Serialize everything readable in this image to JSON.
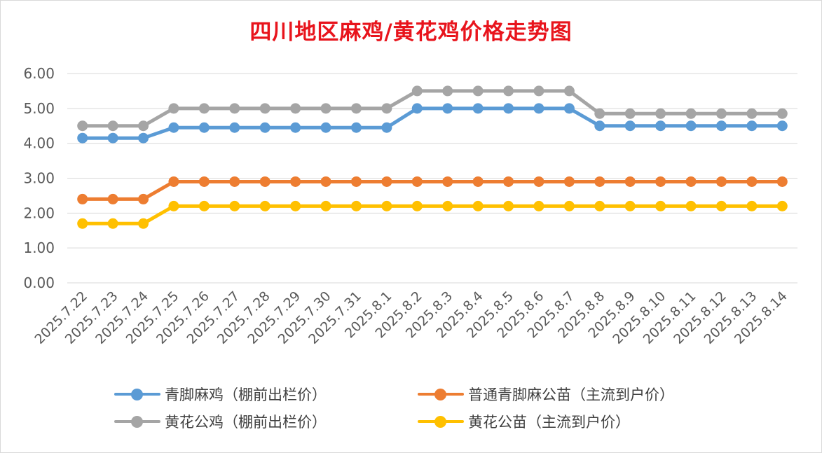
{
  "chart_data": {
    "type": "line",
    "title": "四川地区麻鸡/黄花鸡价格走势图",
    "xlabel": "",
    "ylabel": "",
    "ylim": [
      0,
      6
    ],
    "yticks": [
      "0.00",
      "1.00",
      "2.00",
      "3.00",
      "4.00",
      "5.00",
      "6.00"
    ],
    "grid": "horizontal",
    "legend_position": "bottom",
    "categories": [
      "2025.7.22",
      "2025.7.23",
      "2025.7.24",
      "2025.7.25",
      "2025.7.26",
      "2025.7.27",
      "2025.7.28",
      "2025.7.29",
      "2025.7.30",
      "2025.7.31",
      "2025.8.1",
      "2025.8.2",
      "2025.8.3",
      "2025.8.4",
      "2025.8.5",
      "2025.8.6",
      "2025.8.7",
      "2025.8.8",
      "2025.8.9",
      "2025.8.10",
      "2025.8.11",
      "2025.8.12",
      "2025.8.13",
      "2025.8.14"
    ],
    "series": [
      {
        "name": "青脚麻鸡（棚前出栏价）",
        "color": "#5b9bd5",
        "values": [
          4.15,
          4.15,
          4.15,
          4.45,
          4.45,
          4.45,
          4.45,
          4.45,
          4.45,
          4.45,
          4.45,
          5.0,
          5.0,
          5.0,
          5.0,
          5.0,
          5.0,
          4.5,
          4.5,
          4.5,
          4.5,
          4.5,
          4.5,
          4.5
        ]
      },
      {
        "name": "普通青脚麻公苗（主流到户价）",
        "color": "#ed7d31",
        "values": [
          2.4,
          2.4,
          2.4,
          2.9,
          2.9,
          2.9,
          2.9,
          2.9,
          2.9,
          2.9,
          2.9,
          2.9,
          2.9,
          2.9,
          2.9,
          2.9,
          2.9,
          2.9,
          2.9,
          2.9,
          2.9,
          2.9,
          2.9,
          2.9
        ]
      },
      {
        "name": "黄花公鸡（棚前出栏价）",
        "color": "#a5a5a5",
        "values": [
          4.5,
          4.5,
          4.5,
          5.0,
          5.0,
          5.0,
          5.0,
          5.0,
          5.0,
          5.0,
          5.0,
          5.5,
          5.5,
          5.5,
          5.5,
          5.5,
          5.5,
          4.85,
          4.85,
          4.85,
          4.85,
          4.85,
          4.85,
          4.85
        ]
      },
      {
        "name": "黄花公苗（主流到户价）",
        "color": "#ffc000",
        "values": [
          1.7,
          1.7,
          1.7,
          2.2,
          2.2,
          2.2,
          2.2,
          2.2,
          2.2,
          2.2,
          2.2,
          2.2,
          2.2,
          2.2,
          2.2,
          2.2,
          2.2,
          2.2,
          2.2,
          2.2,
          2.2,
          2.2,
          2.2,
          2.2
        ]
      }
    ],
    "colors": {
      "title": "#e8141c",
      "axis_text": "#595959",
      "grid": "#d9d9d9"
    }
  }
}
